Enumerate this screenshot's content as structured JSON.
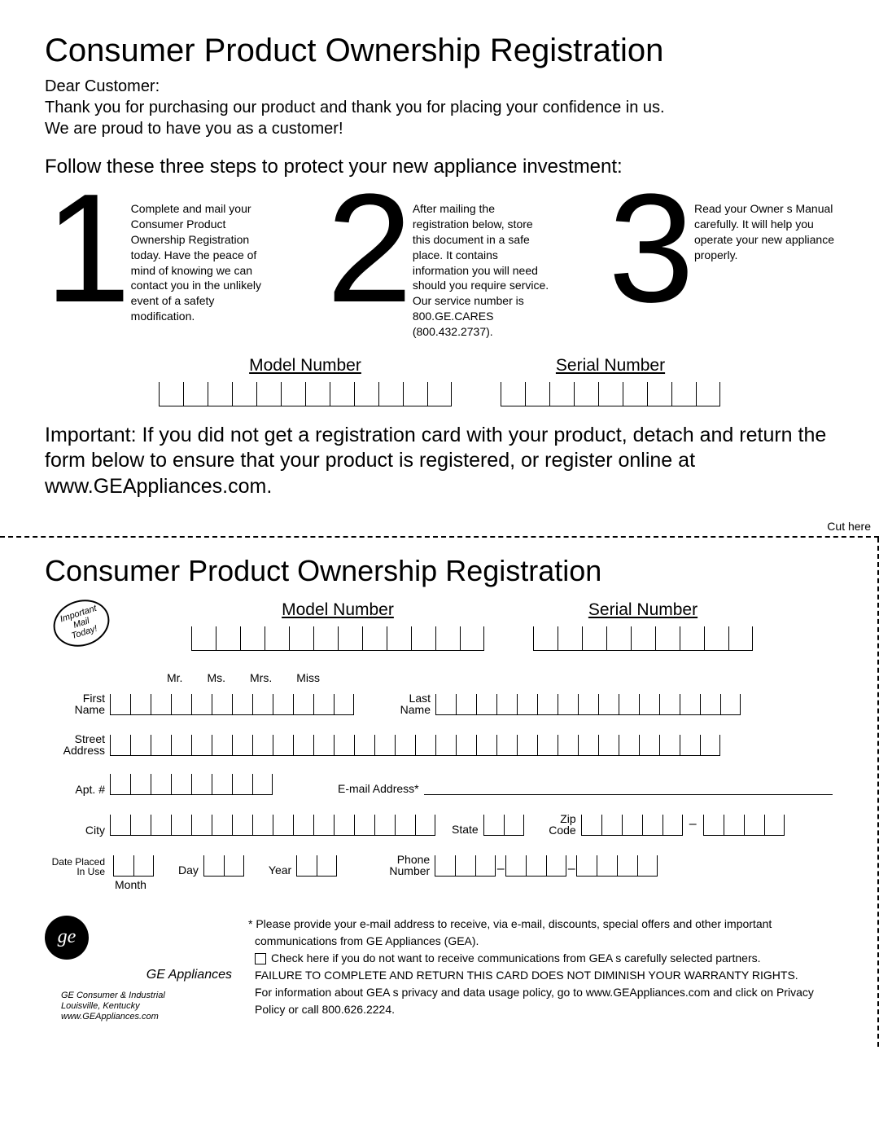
{
  "title": "Consumer Product Ownership Registration",
  "intro": {
    "greeting": "Dear Customer:",
    "line1": "Thank you for purchasing our product and thank you for placing your confidence in us.",
    "line2": "We are proud to have you as a customer!"
  },
  "follow": "Follow these three steps to protect your new appliance investment:",
  "steps": [
    {
      "num": "1",
      "text": "Complete and mail your Consumer Product Ownership Registration today. Have the peace of mind of knowing we can contact you in the unlikely event of a safety modification."
    },
    {
      "num": "2",
      "text": "After mailing the registration below, store this document in a safe place. It contains information you will need should you require service. Our service number is 800.GE.CARES (800.432.2737)."
    },
    {
      "num": "3",
      "text": "Read your Owner s Manual carefully. It will help you operate your new appliance properly."
    }
  ],
  "model_label": "Model Number",
  "serial_label": "Serial Number",
  "model_boxes": 12,
  "serial_boxes": 9,
  "important": {
    "label": "Important:",
    "text": " If you did not get a registration card with your product, detach and return the form below to ensure that your product is registered, or register online at www.GEAppliances.com."
  },
  "cut_here": "Cut here",
  "title2": "Consumer Product Ownership Registration",
  "stamp": {
    "l1": "Important",
    "l2": "Mail",
    "l3": "Today!"
  },
  "titles": [
    "Mr.",
    "Ms.",
    "Mrs.",
    "Miss"
  ],
  "fields": {
    "first_name": "First\nName",
    "last_name": "Last\nName",
    "street": "Street\nAddress",
    "apt": "Apt. #",
    "email": "E-mail Address*",
    "city": "City",
    "state": "State",
    "zip": "Zip\nCode",
    "date": "Date Placed\nIn Use",
    "month": "Month",
    "day": "Day",
    "year": "Year",
    "phone": "Phone\nNumber"
  },
  "footer": {
    "ge_app": "GE Appliances",
    "addr1": "GE Consumer & Industrial",
    "addr2": "Louisville, Kentucky",
    "addr3": "www.GEAppliances.com",
    "d1": "* Please provide your e-mail address to receive, via e-mail, discounts, special offers and other important communications from GE Appliances (GEA).",
    "d2": "Check here if you do not want to receive communications from GEA s carefully selected partners.",
    "d3": "FAILURE TO COMPLETE AND RETURN THIS CARD DOES NOT DIMINISH YOUR WARRANTY RIGHTS.",
    "d4": "For information about GEA s privacy and data usage policy, go to www.GEAppliances.com and click on  Privacy Policy  or call 800.626.2224."
  }
}
